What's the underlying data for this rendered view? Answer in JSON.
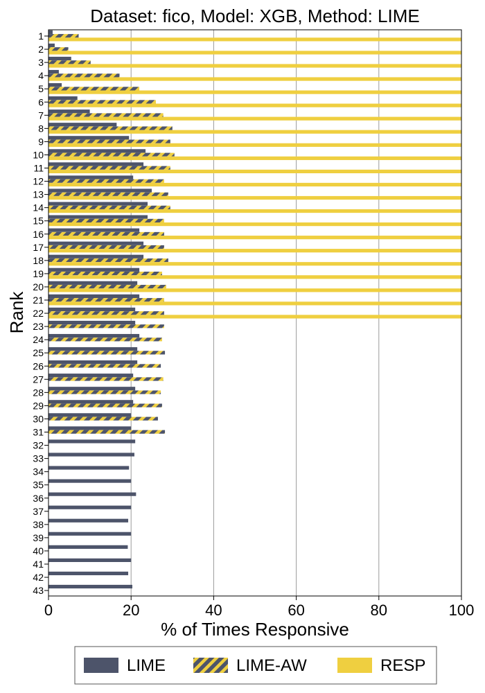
{
  "chart_data": {
    "type": "bar",
    "orientation": "horizontal",
    "title": "Dataset: fico, Model: XGB, Method: LIME",
    "xlabel": "% of Times Responsive",
    "ylabel": "Rank",
    "xlim": [
      0,
      100
    ],
    "xticks": [
      0,
      20,
      40,
      60,
      80,
      100
    ],
    "grid": "vertical",
    "legend_position": "bottom",
    "categories": [
      "1",
      "2",
      "3",
      "4",
      "5",
      "6",
      "7",
      "8",
      "9",
      "10",
      "11",
      "12",
      "13",
      "14",
      "15",
      "16",
      "17",
      "18",
      "19",
      "20",
      "21",
      "22",
      "23",
      "24",
      "25",
      "26",
      "27",
      "28",
      "29",
      "30",
      "31",
      "32",
      "33",
      "34",
      "35",
      "36",
      "37",
      "38",
      "39",
      "40",
      "41",
      "42",
      "43"
    ],
    "series": [
      {
        "name": "LIME",
        "color": "#4d546a",
        "pattern": "solid",
        "values": [
          1.0,
          1.5,
          5.5,
          2.5,
          3.2,
          7.0,
          10.0,
          16.5,
          19.5,
          23.5,
          23.0,
          20.5,
          25.0,
          24.0,
          24.0,
          22.0,
          23.0,
          23.0,
          22.0,
          21.5,
          22.0,
          21.0,
          21.0,
          22.0,
          21.5,
          21.5,
          20.5,
          21.0,
          20.5,
          20.0,
          20.0,
          21.0,
          20.8,
          19.5,
          20.0,
          21.2,
          20.0,
          19.3,
          20.0,
          19.2,
          20.0,
          19.3,
          20.3
        ]
      },
      {
        "name": "LIME-AW",
        "color": "#4d546a",
        "stripe_color": "#efcf40",
        "pattern": "hatched",
        "values": [
          7.3,
          4.8,
          10.2,
          17.2,
          22.0,
          26.0,
          27.8,
          30.0,
          29.5,
          30.5,
          29.5,
          28.0,
          29.0,
          29.5,
          28.0,
          28.0,
          28.0,
          29.0,
          27.5,
          28.5,
          28.0,
          28.0,
          28.0,
          27.5,
          28.2,
          27.2,
          27.8,
          27.2,
          27.5,
          26.5,
          28.2,
          0,
          0,
          0,
          0,
          0,
          0,
          0,
          0,
          0,
          0,
          0,
          0
        ]
      },
      {
        "name": "RESP",
        "color": "#efcf40",
        "pattern": "solid",
        "values": [
          100,
          100,
          100,
          100,
          100,
          100,
          100,
          100,
          100,
          100,
          100,
          100,
          100,
          100,
          100,
          100,
          100,
          100,
          100,
          100,
          100,
          100,
          0,
          0,
          0,
          0,
          0,
          0,
          0,
          0,
          0,
          0,
          0,
          0,
          0,
          0,
          0,
          0,
          0,
          0,
          0,
          0,
          0
        ]
      }
    ]
  }
}
